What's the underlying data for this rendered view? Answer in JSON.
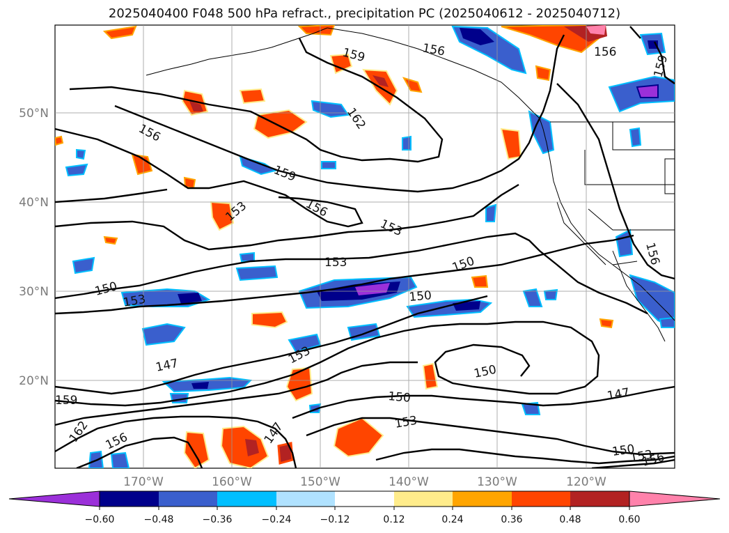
{
  "title": "2025040400 F048 500 hPa refract., precipitation PC (2025040612 - 2025040712)",
  "lat_labels": [
    "50°N",
    "40°N",
    "30°N",
    "20°N"
  ],
  "lon_labels": [
    "170°W",
    "160°W",
    "150°W",
    "140°W",
    "130°W",
    "120°W"
  ],
  "colorbar": {
    "ticks": [
      "−0.60",
      "−0.48",
      "−0.36",
      "−0.24",
      "−0.12",
      "0.12",
      "0.24",
      "0.36",
      "0.48",
      "0.60"
    ],
    "colors": [
      "#9b30d9",
      "#00008b",
      "#3a5fcd",
      "#00bfff",
      "#b0e2ff",
      "#ffffff",
      "#ffec8b",
      "#ffa500",
      "#ff4500",
      "#b22222",
      "#ff82ab"
    ]
  },
  "contour_labels": [
    "159",
    "156",
    "162",
    "156",
    "159",
    "156",
    "153",
    "153",
    "153",
    "150",
    "150",
    "153",
    "150",
    "147",
    "153",
    "150",
    "159",
    "162",
    "156",
    "147",
    "150",
    "153",
    "147",
    "150",
    "153",
    "156",
    "156",
    "159"
  ]
}
